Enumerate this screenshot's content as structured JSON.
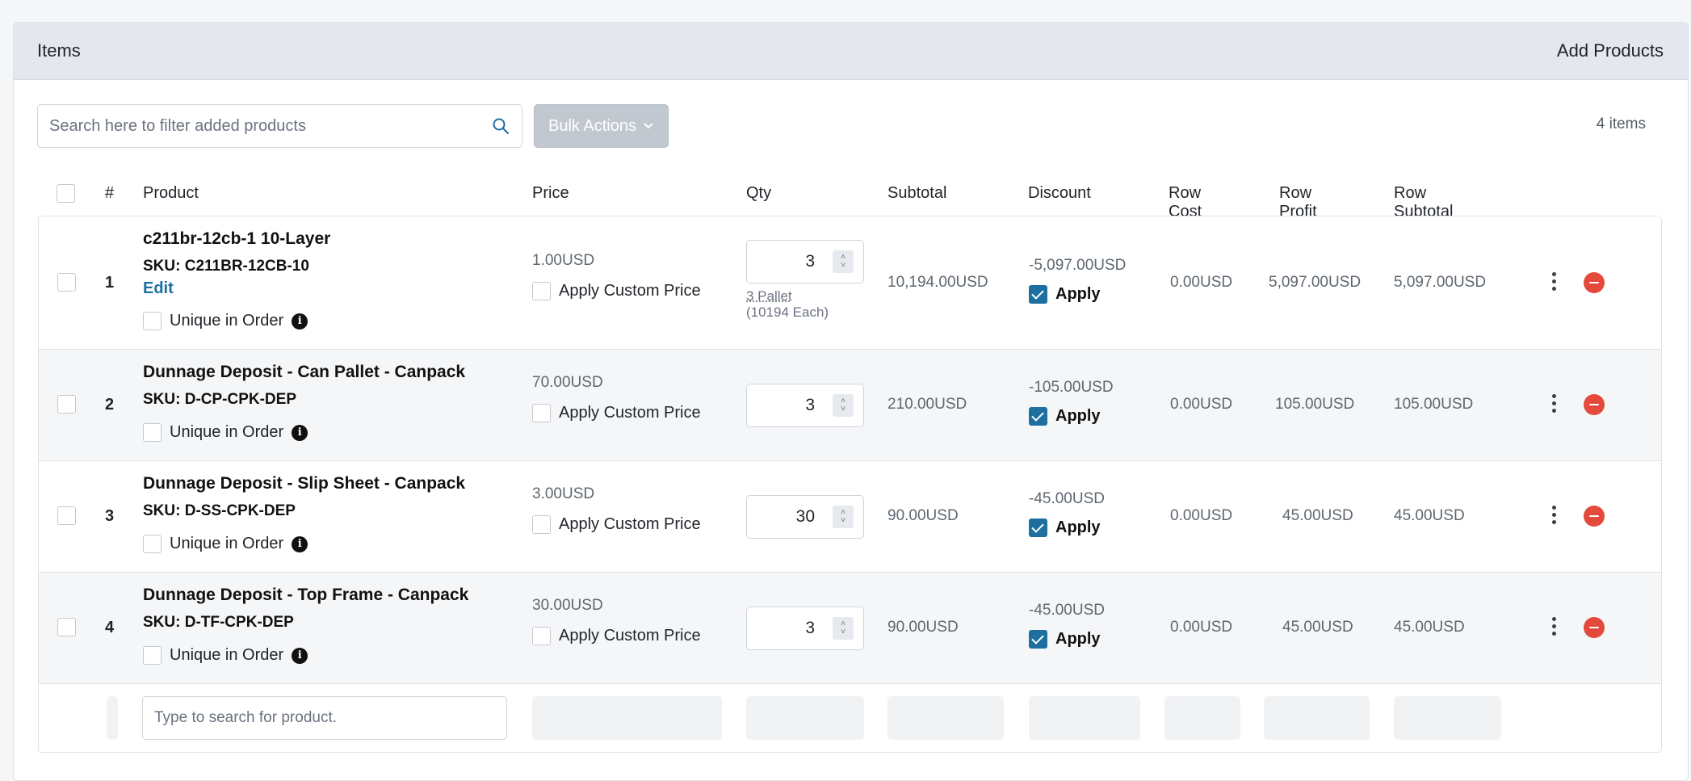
{
  "header": {
    "title": "Items",
    "add_products": "Add Products"
  },
  "toolbar": {
    "search_placeholder": "Search here to filter added products",
    "bulk_actions": "Bulk Actions",
    "item_count": "4 items"
  },
  "columns": {
    "num": "#",
    "product": "Product",
    "price": "Price",
    "qty": "Qty",
    "subtotal": "Subtotal",
    "discount": "Discount",
    "row_cost": "Row Cost",
    "row_profit": "Row Profit",
    "row_subtotal": "Row Subtotal"
  },
  "labels": {
    "unique_in_order": "Unique in Order",
    "apply_custom_price": "Apply Custom Price",
    "apply": "Apply",
    "edit": "Edit",
    "info_glyph": "i"
  },
  "rows": [
    {
      "num": "1",
      "name": "c211br-12cb-1 10-Layer",
      "sku": "SKU: C211BR-12CB-10",
      "price": "1.00USD",
      "qty": "3",
      "qty_unit": "3 Pallet",
      "qty_each": "(10194 Each)",
      "subtotal": "10,194.00USD",
      "discount": "-5,097.00USD",
      "row_cost": "0.00USD",
      "row_profit": "5,097.00USD",
      "row_subtotal": "5,097.00USD"
    },
    {
      "num": "2",
      "name": "Dunnage Deposit - Can Pallet - Canpack",
      "sku": "SKU: D-CP-CPK-DEP",
      "price": "70.00USD",
      "qty": "3",
      "subtotal": "210.00USD",
      "discount": "-105.00USD",
      "row_cost": "0.00USD",
      "row_profit": "105.00USD",
      "row_subtotal": "105.00USD"
    },
    {
      "num": "3",
      "name": "Dunnage Deposit - Slip Sheet - Canpack",
      "sku": "SKU: D-SS-CPK-DEP",
      "price": "3.00USD",
      "qty": "30",
      "subtotal": "90.00USD",
      "discount": "-45.00USD",
      "row_cost": "0.00USD",
      "row_profit": "45.00USD",
      "row_subtotal": "45.00USD"
    },
    {
      "num": "4",
      "name": "Dunnage Deposit - Top Frame - Canpack",
      "sku": "SKU: D-TF-CPK-DEP",
      "price": "30.00USD",
      "qty": "3",
      "subtotal": "90.00USD",
      "discount": "-45.00USD",
      "row_cost": "0.00USD",
      "row_profit": "45.00USD",
      "row_subtotal": "45.00USD"
    }
  ],
  "add_row": {
    "product_placeholder": "Type to search for product."
  },
  "colors": {
    "accent": "#1d6fa0",
    "danger": "#e34a3c",
    "header_bg": "#e4e8ee"
  }
}
